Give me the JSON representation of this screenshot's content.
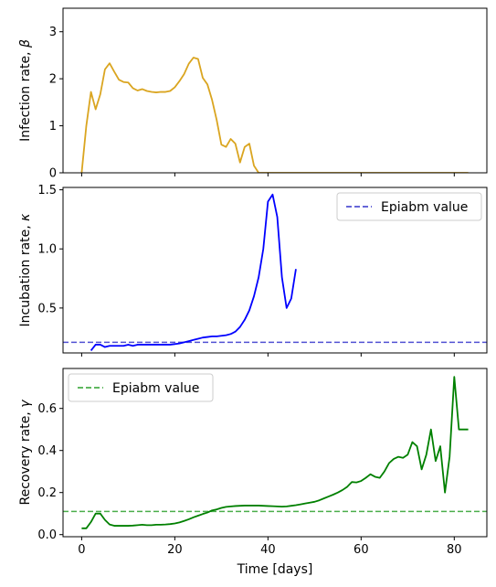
{
  "chart_data": [
    {
      "type": "line",
      "ylabel_text": "Infection rate, ",
      "ylabel_symbol": "β",
      "ylim": [
        0,
        3.5
      ],
      "yticks": [
        0,
        1,
        2,
        3
      ],
      "ytick_labels": [
        "0",
        "1",
        "2",
        "3"
      ],
      "xlim": [
        -4,
        87
      ],
      "grid": false,
      "series": [
        {
          "color": "#DAA520",
          "x": [
            0,
            1,
            2,
            3,
            4,
            5,
            6,
            7,
            8,
            9,
            10,
            11,
            12,
            13,
            14,
            15,
            16,
            17,
            18,
            19,
            20,
            21,
            22,
            23,
            24,
            25,
            26,
            27,
            28,
            29,
            30,
            31,
            32,
            33,
            34,
            35,
            36,
            37,
            38,
            39,
            40,
            41,
            42,
            43,
            44,
            45,
            46,
            47,
            48,
            49,
            50,
            51,
            52,
            53,
            54,
            55,
            56,
            57,
            58,
            59,
            60,
            61,
            62,
            63,
            64,
            65,
            66,
            67,
            68,
            69,
            70,
            71,
            72,
            73,
            74,
            75,
            76,
            77,
            78,
            79,
            80,
            81,
            82,
            83
          ],
          "y": [
            0,
            1.0,
            1.72,
            1.35,
            1.67,
            2.2,
            2.33,
            2.15,
            1.98,
            1.93,
            1.92,
            1.8,
            1.75,
            1.78,
            1.74,
            1.72,
            1.71,
            1.72,
            1.72,
            1.74,
            1.82,
            1.95,
            2.1,
            2.32,
            2.45,
            2.42,
            2.02,
            1.88,
            1.55,
            1.12,
            0.6,
            0.55,
            0.72,
            0.62,
            0.22,
            0.55,
            0.62,
            0.15,
            0,
            0,
            0,
            0,
            0,
            0,
            0,
            0,
            0,
            0,
            0,
            0,
            0,
            0,
            0,
            0,
            0,
            0,
            0,
            0,
            0,
            0,
            0,
            0,
            0,
            0,
            0,
            0,
            0,
            0,
            0,
            0,
            0,
            0,
            0,
            0,
            0,
            0,
            0,
            0,
            0,
            0,
            0,
            0,
            0,
            0
          ]
        }
      ]
    },
    {
      "type": "line",
      "ylabel_text": "Incubation rate, ",
      "ylabel_symbol": "κ",
      "ylim": [
        0.12,
        1.52
      ],
      "yticks": [
        0.5,
        1.0,
        1.5
      ],
      "ytick_labels": [
        "0.5",
        "1.0",
        "1.5"
      ],
      "xlim": [
        -4,
        87
      ],
      "grid": false,
      "reference_line": {
        "y": 0.21,
        "color": "#3333CC",
        "style": "dashed"
      },
      "legend": {
        "placement": "top-right",
        "label": "Epiabm value"
      },
      "series": [
        {
          "color": "#0000FF",
          "x": [
            2,
            3,
            4,
            5,
            6,
            7,
            8,
            9,
            10,
            11,
            12,
            13,
            14,
            15,
            16,
            17,
            18,
            19,
            20,
            21,
            22,
            23,
            24,
            25,
            26,
            27,
            28,
            29,
            30,
            31,
            32,
            33,
            34,
            35,
            36,
            37,
            38,
            39,
            40,
            41,
            42,
            43,
            44,
            45,
            46
          ],
          "y": [
            0.14,
            0.19,
            0.19,
            0.17,
            0.18,
            0.18,
            0.18,
            0.18,
            0.19,
            0.18,
            0.19,
            0.19,
            0.19,
            0.19,
            0.19,
            0.19,
            0.19,
            0.19,
            0.195,
            0.2,
            0.21,
            0.22,
            0.23,
            0.24,
            0.25,
            0.255,
            0.26,
            0.26,
            0.265,
            0.27,
            0.28,
            0.3,
            0.34,
            0.4,
            0.48,
            0.6,
            0.76,
            1.0,
            1.4,
            1.46,
            1.27,
            0.76,
            0.5,
            0.58,
            0.83
          ]
        }
      ]
    },
    {
      "type": "line",
      "ylabel_text": "Recovery rate, ",
      "ylabel_symbol": "γ",
      "ylim": [
        -0.01,
        0.79
      ],
      "yticks": [
        0.0,
        0.2,
        0.4,
        0.6
      ],
      "ytick_labels": [
        "0.0",
        "0.2",
        "0.4",
        "0.6"
      ],
      "xlim": [
        -4,
        87
      ],
      "xticks": [
        0,
        20,
        40,
        60,
        80
      ],
      "xtick_labels": [
        "0",
        "20",
        "40",
        "60",
        "80"
      ],
      "xlabel": "Time [days]",
      "grid": false,
      "reference_line": {
        "y": 0.11,
        "color": "#2CA02C",
        "style": "dashed"
      },
      "legend": {
        "placement": "top-left",
        "label": "Epiabm value"
      },
      "series": [
        {
          "color": "#008000",
          "x": [
            0,
            1,
            2,
            3,
            4,
            5,
            6,
            7,
            8,
            9,
            10,
            11,
            12,
            13,
            14,
            15,
            16,
            17,
            18,
            19,
            20,
            21,
            22,
            23,
            24,
            25,
            26,
            27,
            28,
            29,
            30,
            31,
            32,
            33,
            34,
            35,
            36,
            37,
            38,
            39,
            40,
            41,
            42,
            43,
            44,
            45,
            46,
            47,
            48,
            49,
            50,
            51,
            52,
            53,
            54,
            55,
            56,
            57,
            58,
            59,
            60,
            61,
            62,
            63,
            64,
            65,
            66,
            67,
            68,
            69,
            70,
            71,
            72,
            73,
            74,
            75,
            76,
            77,
            78,
            79,
            80,
            81,
            82,
            83
          ],
          "y": [
            0.03,
            0.03,
            0.06,
            0.1,
            0.1,
            0.07,
            0.048,
            0.042,
            0.042,
            0.042,
            0.042,
            0.043,
            0.045,
            0.047,
            0.045,
            0.045,
            0.047,
            0.047,
            0.048,
            0.05,
            0.053,
            0.058,
            0.065,
            0.073,
            0.082,
            0.09,
            0.098,
            0.105,
            0.115,
            0.12,
            0.127,
            0.132,
            0.134,
            0.136,
            0.137,
            0.138,
            0.138,
            0.138,
            0.138,
            0.137,
            0.136,
            0.135,
            0.134,
            0.133,
            0.134,
            0.137,
            0.14,
            0.144,
            0.148,
            0.152,
            0.156,
            0.163,
            0.172,
            0.181,
            0.19,
            0.2,
            0.212,
            0.227,
            0.25,
            0.248,
            0.255,
            0.27,
            0.287,
            0.275,
            0.27,
            0.3,
            0.34,
            0.36,
            0.37,
            0.365,
            0.38,
            0.44,
            0.42,
            0.31,
            0.38,
            0.5,
            0.35,
            0.42,
            0.2,
            0.37,
            0.75,
            0.5,
            0.5,
            0.5
          ]
        }
      ]
    }
  ]
}
